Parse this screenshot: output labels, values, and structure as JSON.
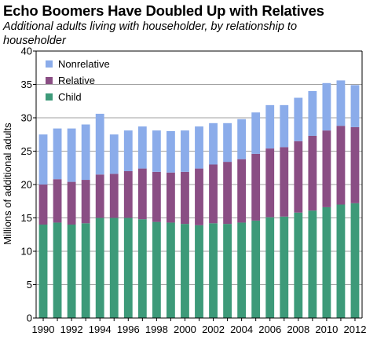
{
  "chart_data": {
    "type": "bar",
    "stacked": true,
    "title": "Echo Boomers Have Doubled Up with Relatives",
    "subtitle": "Additional adults living with householder, by relationship to householder",
    "xlabel": "",
    "ylabel": "Millions of additional adults",
    "ylim": [
      0,
      40
    ],
    "yticks": [
      0,
      5,
      10,
      15,
      20,
      25,
      30,
      35,
      40
    ],
    "categories": [
      1990,
      1991,
      1992,
      1993,
      1994,
      1995,
      1996,
      1997,
      1998,
      1999,
      2000,
      2001,
      2002,
      2003,
      2004,
      2005,
      2006,
      2007,
      2008,
      2009,
      2010,
      2011,
      2012
    ],
    "xtick_labels": [
      "1990",
      "1992",
      "1994",
      "1996",
      "1998",
      "2000",
      "2002",
      "2004",
      "2006",
      "2008",
      "2010",
      "2012"
    ],
    "grid": "horizontal",
    "legend_position": "top-left",
    "series": [
      {
        "name": "Child",
        "color": "#3d9a79",
        "values": [
          14.0,
          14.3,
          14.0,
          14.2,
          15.0,
          15.0,
          15.0,
          14.8,
          14.4,
          14.3,
          14.1,
          13.9,
          14.2,
          14.1,
          14.3,
          14.6,
          15.1,
          15.2,
          15.8,
          16.1,
          16.6,
          17.0,
          17.2
        ]
      },
      {
        "name": "Relative",
        "color": "#8a4e84",
        "values": [
          6.0,
          6.5,
          6.4,
          6.5,
          6.5,
          6.6,
          7.0,
          7.6,
          7.5,
          7.5,
          7.8,
          8.5,
          8.8,
          9.3,
          9.5,
          10.0,
          10.3,
          10.4,
          10.7,
          11.2,
          11.5,
          11.8,
          11.4
        ]
      },
      {
        "name": "Nonrelative",
        "color": "#8bacea",
        "values": [
          7.5,
          7.6,
          8.0,
          8.3,
          9.1,
          5.9,
          6.1,
          6.3,
          6.2,
          6.2,
          6.2,
          6.3,
          6.2,
          5.8,
          6.0,
          6.2,
          6.5,
          6.3,
          6.5,
          6.7,
          7.1,
          6.8,
          6.3
        ]
      }
    ]
  }
}
